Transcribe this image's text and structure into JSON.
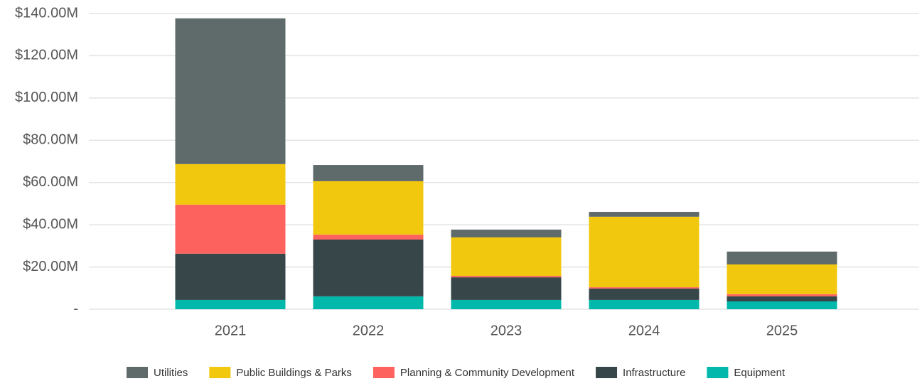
{
  "chart_data": {
    "type": "stacked_bar",
    "categories": [
      "2021",
      "2022",
      "2023",
      "2024",
      "2025"
    ],
    "series": [
      {
        "name": "Utilities",
        "color": "#5f6b6b",
        "values": [
          69000000,
          7700000,
          3700000,
          2300000,
          6100000
        ]
      },
      {
        "name": "Public Buildings & Parks",
        "color": "#f2c80f",
        "values": [
          19200000,
          25300000,
          18200000,
          33400000,
          14100000
        ]
      },
      {
        "name": "Planning & Community Development",
        "color": "#fd625e",
        "values": [
          23200000,
          2300000,
          700000,
          600000,
          1000000
        ]
      },
      {
        "name": "Infrastructure",
        "color": "#374649",
        "values": [
          21900000,
          26900000,
          10700000,
          5400000,
          2400000
        ]
      },
      {
        "name": "Equipment",
        "color": "#01b8aa",
        "values": [
          4400000,
          6100000,
          4400000,
          4400000,
          3700000
        ]
      }
    ],
    "ylim": [
      0,
      140000000
    ],
    "yticks": [
      {
        "value": 0,
        "label": "-"
      },
      {
        "value": 20000000,
        "label": "$20.00M"
      },
      {
        "value": 40000000,
        "label": "$40.00M"
      },
      {
        "value": 60000000,
        "label": "$60.00M"
      },
      {
        "value": 80000000,
        "label": "$80.00M"
      },
      {
        "value": 100000000,
        "label": "$100.00M"
      },
      {
        "value": 120000000,
        "label": "$120.00M"
      },
      {
        "value": 140000000,
        "label": "$140.00M"
      }
    ],
    "grid": true,
    "legend": "bottom"
  }
}
